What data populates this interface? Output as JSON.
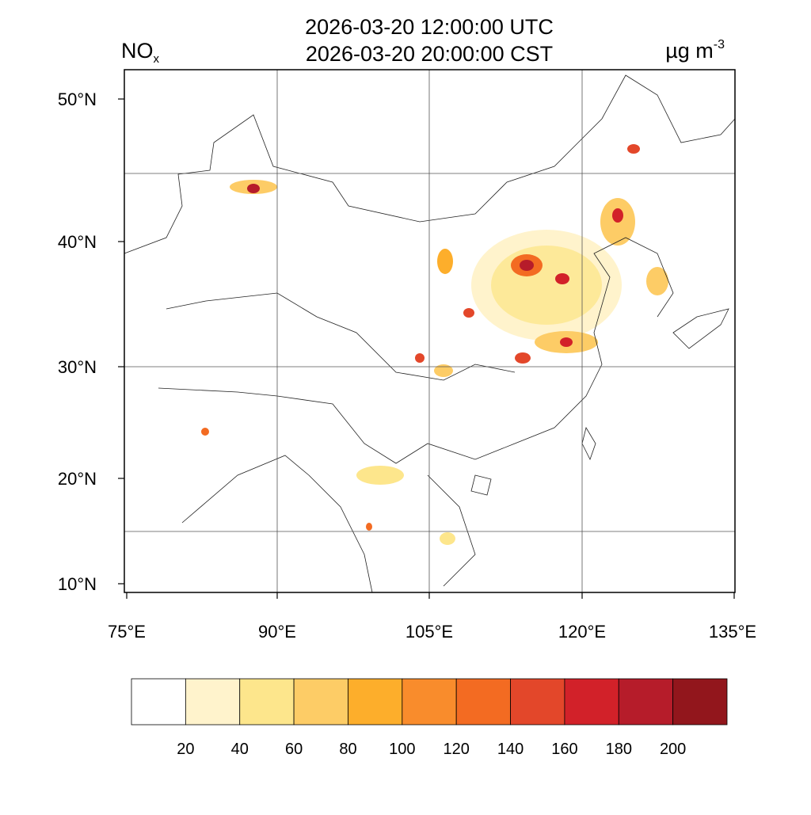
{
  "header": {
    "title_line1": "2026-03-20 12:00:00 UTC",
    "title_line2": "2026-03-20 20:00:00 CST",
    "variable": "NO",
    "variable_sub": "x",
    "units": "µg m",
    "units_sup": "-3"
  },
  "map": {
    "lat_labels": [
      "50°N",
      "40°N",
      "30°N",
      "20°N",
      "10°N"
    ],
    "lon_labels": [
      "75°E",
      "90°E",
      "105°E",
      "120°E",
      "135°E"
    ]
  },
  "colorbar": {
    "colors": [
      "#ffffff",
      "#fff3cc",
      "#fde68c",
      "#fdcc66",
      "#fdae2b",
      "#f98c2c",
      "#f36b22",
      "#e3472a",
      "#d22129",
      "#b61c2a",
      "#92161c"
    ],
    "labels": [
      20,
      40,
      60,
      80,
      100,
      120,
      140,
      160,
      180,
      200
    ]
  }
}
